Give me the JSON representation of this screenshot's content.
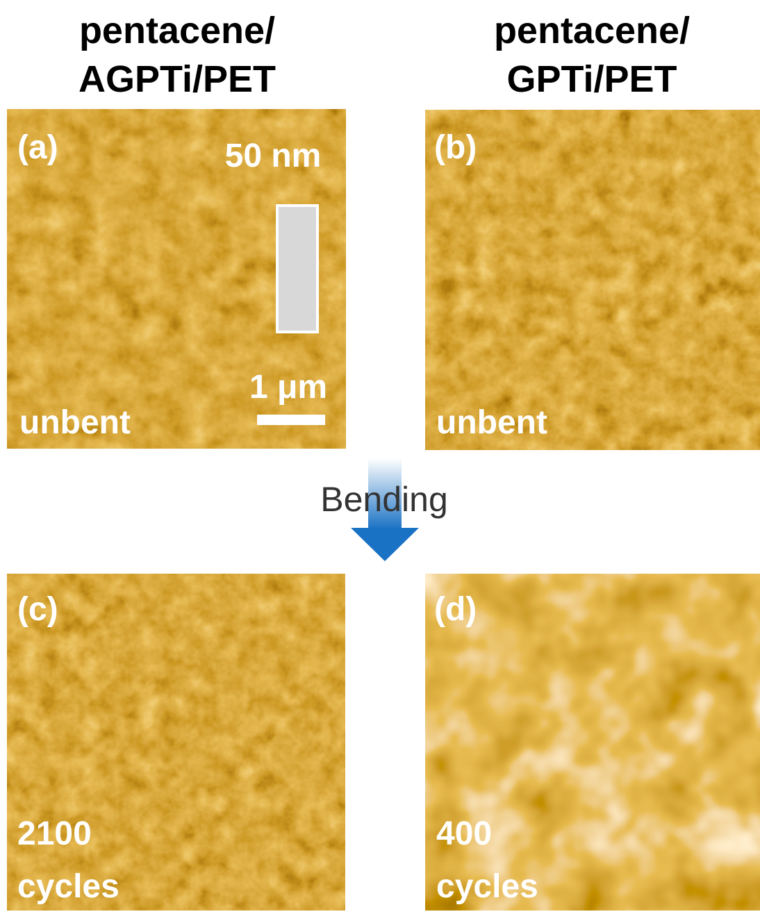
{
  "columns": [
    {
      "title_lines": [
        "pentacene/",
        "AGPTi/PET"
      ]
    },
    {
      "title_lines": [
        "pentacene/",
        "GPTi/PET"
      ]
    }
  ],
  "panels": [
    {
      "label": "(a)",
      "condition_lines": [
        "unbent"
      ]
    },
    {
      "label": "(b)",
      "condition_lines": [
        "unbent"
      ]
    },
    {
      "label": "(c)",
      "condition_lines": [
        "2100",
        "cycles"
      ]
    },
    {
      "label": "(d)",
      "condition_lines": [
        "400",
        "cycles"
      ]
    }
  ],
  "scale": {
    "height_range": "50 nm",
    "length": "1 μm"
  },
  "process": "Bending"
}
